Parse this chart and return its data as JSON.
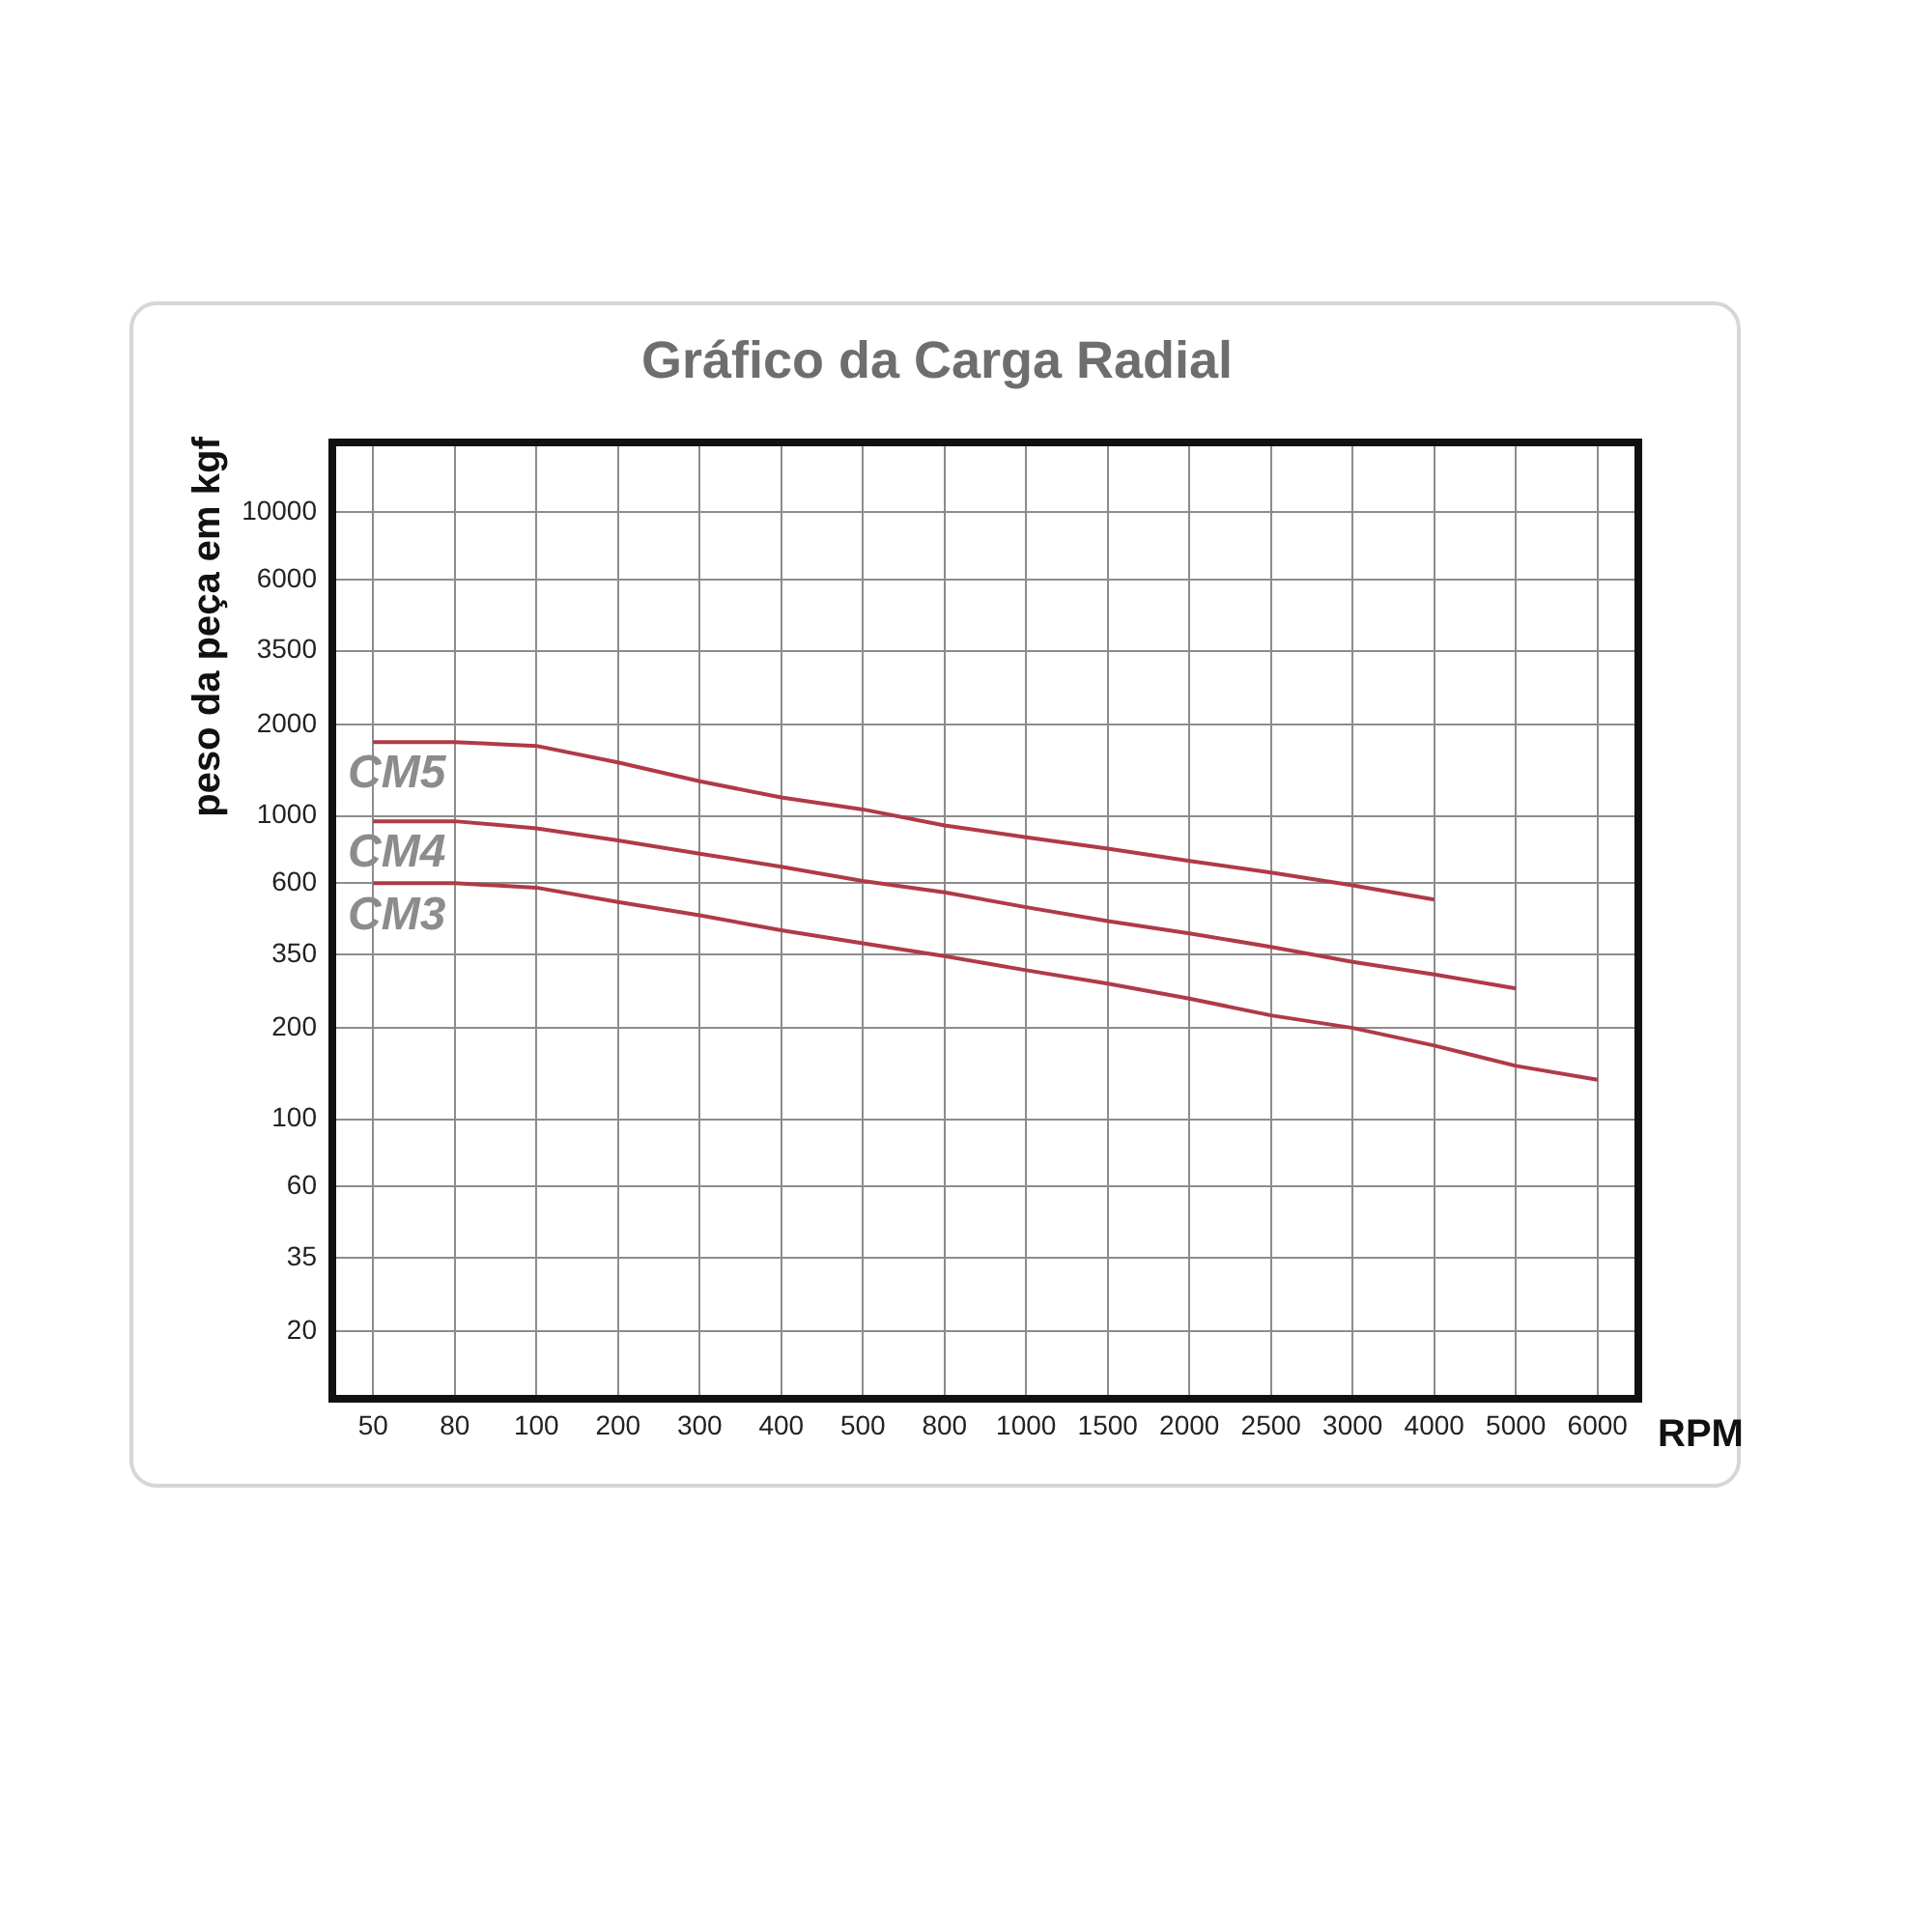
{
  "chart_data": {
    "type": "line",
    "title": "Gráfico da Carga Radial",
    "xlabel": "RPM",
    "ylabel": "peso da peça em kgf",
    "categories": [
      "50",
      "80",
      "100",
      "200",
      "300",
      "400",
      "500",
      "800",
      "1000",
      "1500",
      "2000",
      "2500",
      "3000",
      "4000",
      "5000",
      "6000"
    ],
    "log": "y",
    "ylim": [
      12,
      17000
    ],
    "yticks": [
      20,
      35,
      60,
      100,
      200,
      350,
      600,
      1000,
      2000,
      3500,
      6000,
      10000
    ],
    "grid": true,
    "series": [
      {
        "name": "CM5",
        "color": "#b03a48",
        "values": [
          1750,
          1750,
          1700,
          1500,
          1300,
          1150,
          1050,
          930,
          850,
          780,
          710,
          650,
          590,
          530,
          null,
          null
        ]
      },
      {
        "name": "CM4",
        "color": "#b03a48",
        "values": [
          960,
          960,
          910,
          830,
          750,
          680,
          610,
          560,
          500,
          450,
          410,
          370,
          330,
          300,
          270,
          null
        ]
      },
      {
        "name": "CM3",
        "color": "#b03a48",
        "values": [
          600,
          600,
          580,
          520,
          470,
          420,
          380,
          345,
          310,
          280,
          250,
          220,
          200,
          175,
          150,
          135
        ]
      }
    ]
  }
}
